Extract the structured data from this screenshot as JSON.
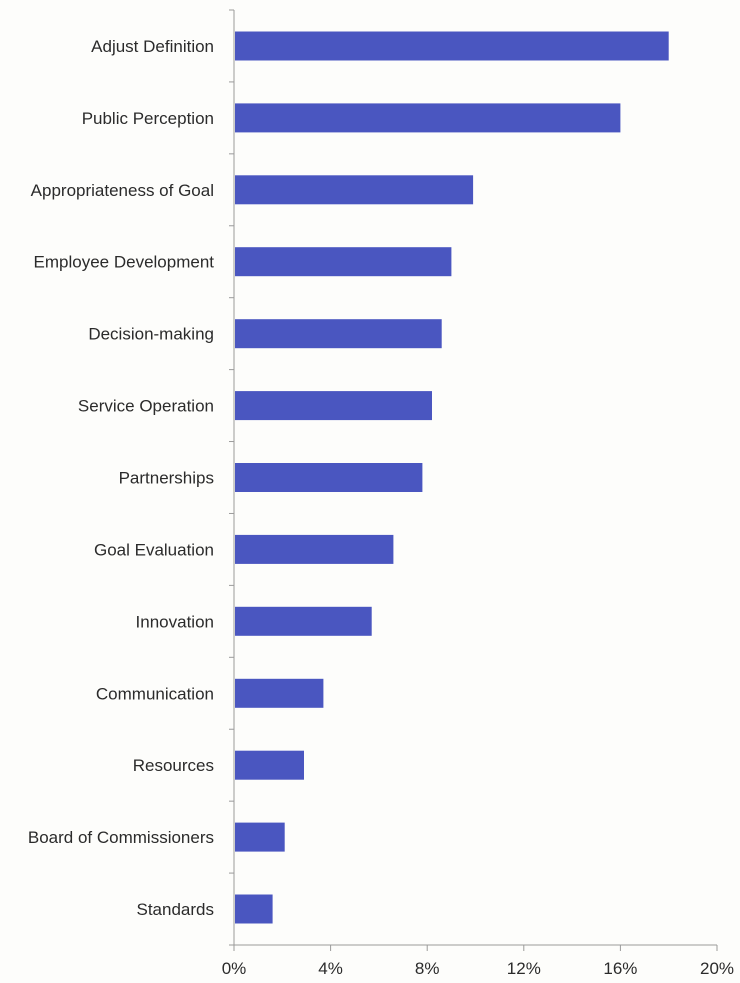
{
  "chart_data": {
    "type": "bar",
    "orientation": "horizontal",
    "title": "",
    "xlabel": "",
    "ylabel": "",
    "categories": [
      "Adjust Definition",
      "Public Perception",
      "Appropriateness of Goal",
      "Employee Development",
      "Decision-making",
      "Service Operation",
      "Partnerships",
      "Goal Evaluation",
      "Innovation",
      "Communication",
      "Resources",
      "Board of Commissioners",
      "Standards"
    ],
    "values": [
      18.0,
      16.0,
      9.9,
      9.0,
      8.6,
      8.2,
      7.8,
      6.6,
      5.7,
      3.7,
      2.9,
      2.1,
      1.6
    ],
    "xlim": [
      0,
      20
    ],
    "x_ticks": [
      "0%",
      "4%",
      "8%",
      "12%",
      "16%",
      "20%"
    ],
    "x_tick_values": [
      0,
      4,
      8,
      12,
      16,
      20
    ],
    "grid": false,
    "legend": "none",
    "colors": {
      "bar": "#4a56c0",
      "axis": "#9a9a9a",
      "text": "#2b2b2b"
    }
  }
}
